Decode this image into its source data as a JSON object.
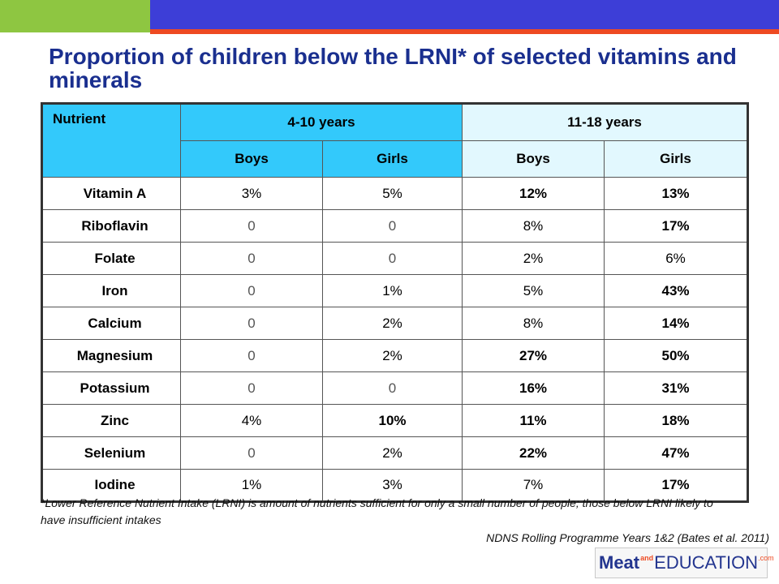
{
  "title": "Proportion of children below the LRNI* of selected vitamins and minerals",
  "table": {
    "header_nutrient": "Nutrient",
    "group_410": "4-10 years",
    "group_1118": "11-18 years",
    "sub": [
      "Boys",
      "Girls",
      "Boys",
      "Girls"
    ],
    "rows": [
      {
        "name": "Vitamin A",
        "v": [
          "3%",
          "5%",
          "12%",
          "13%"
        ]
      },
      {
        "name": "Riboflavin",
        "v": [
          "0",
          "0",
          "8%",
          "17%"
        ]
      },
      {
        "name": "Folate",
        "v": [
          "0",
          "0",
          "2%",
          "6%"
        ]
      },
      {
        "name": "Iron",
        "v": [
          "0",
          "1%",
          "5%",
          "43%"
        ]
      },
      {
        "name": "Calcium",
        "v": [
          "0",
          "2%",
          "8%",
          "14%"
        ]
      },
      {
        "name": "Magnesium",
        "v": [
          "0",
          "2%",
          "27%",
          "50%"
        ]
      },
      {
        "name": "Potassium",
        "v": [
          "0",
          "0",
          "16%",
          "31%"
        ]
      },
      {
        "name": "Zinc",
        "v": [
          "4%",
          "10%",
          "11%",
          "18%"
        ]
      },
      {
        "name": "Selenium",
        "v": [
          "0",
          "2%",
          "22%",
          "47%"
        ]
      },
      {
        "name": "Iodine",
        "v": [
          "1%",
          "3%",
          "7%",
          "17%"
        ]
      }
    ],
    "bold": [
      [
        false,
        false,
        true,
        true
      ],
      [
        false,
        false,
        false,
        true
      ],
      [
        false,
        false,
        false,
        false
      ],
      [
        false,
        false,
        false,
        true
      ],
      [
        false,
        false,
        false,
        true
      ],
      [
        false,
        false,
        true,
        true
      ],
      [
        false,
        false,
        true,
        true
      ],
      [
        false,
        true,
        true,
        true
      ],
      [
        false,
        false,
        true,
        true
      ],
      [
        false,
        false,
        false,
        true
      ]
    ]
  },
  "footnote": "*Lower Reference Nutrient Intake (LRNI) is amount of nutrients sufficient for only a small number of people; those below LRNI likely to have insufficient intakes",
  "source": "NDNS Rolling Programme Years 1&2 (Bates et al. 2011)",
  "logo": {
    "meat": "Meat",
    "and": "and",
    "edu": "EDUCATION",
    "com": ".com"
  },
  "colors": {
    "banner_green": "#8ec641",
    "banner_blue": "#3d3ed7",
    "banner_orange": "#ee4a22",
    "title": "#1a2f8f",
    "header_cyan": "#33c9fb",
    "header_light": "#e2f8fe"
  }
}
